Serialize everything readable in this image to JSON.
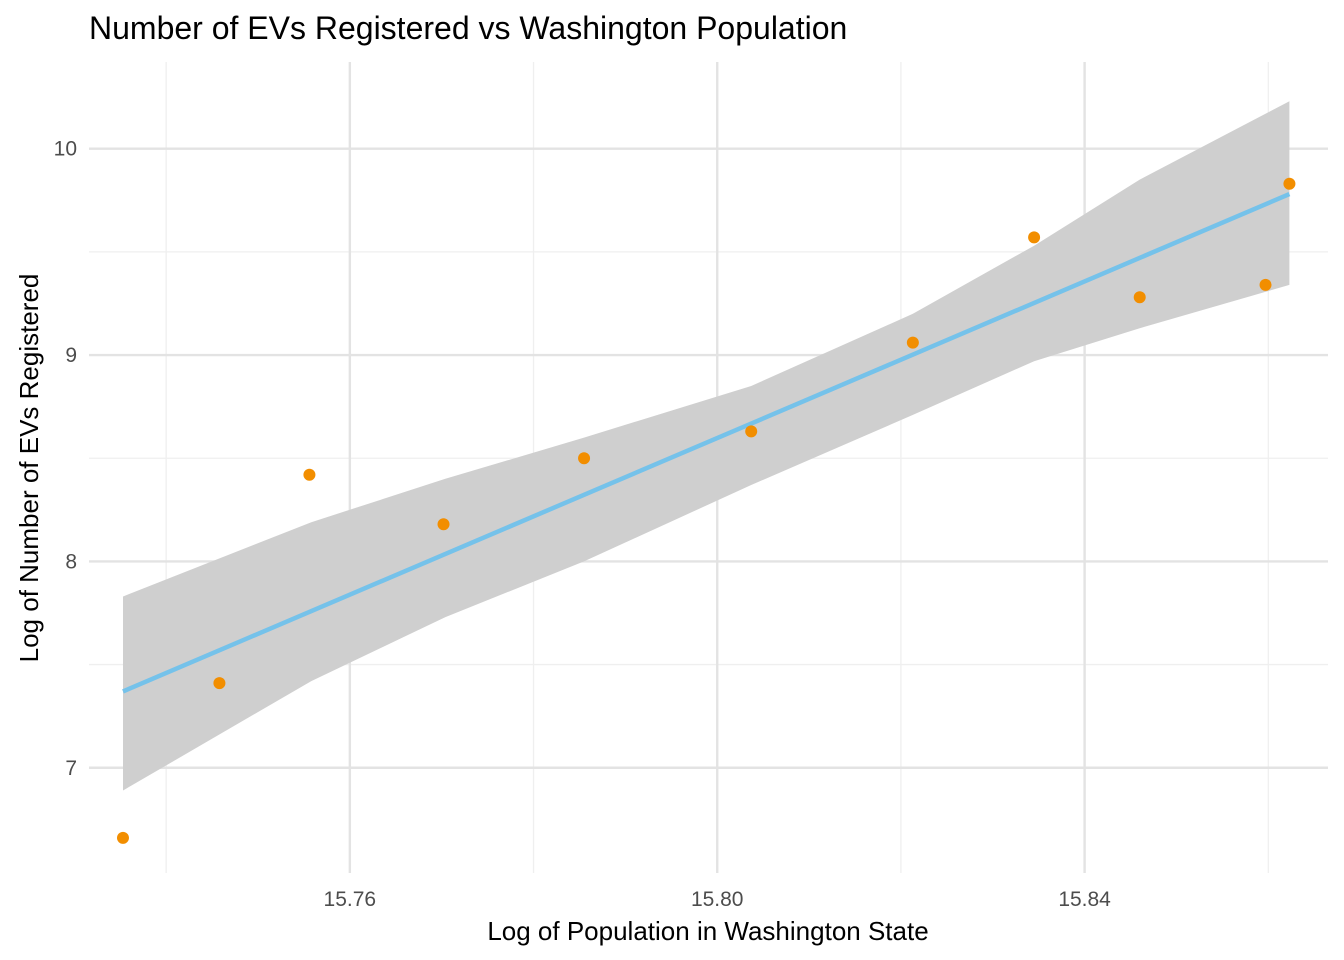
{
  "chart_data": {
    "type": "scatter",
    "title": "Number of EVs Registered vs Washington Population",
    "xlabel": "Log of Population in Washington State",
    "ylabel": "Log of Number of EVs Registered",
    "xlim": [
      15.7316,
      15.8665
    ],
    "ylim": [
      6.49,
      10.42
    ],
    "x_ticks": [
      15.76,
      15.8,
      15.84
    ],
    "x_tick_labels": [
      "15.76",
      "15.80",
      "15.84"
    ],
    "x_minor_ticks": [
      15.74,
      15.78,
      15.82,
      15.86
    ],
    "y_ticks": [
      7,
      8,
      9,
      10
    ],
    "y_tick_labels": [
      "7",
      "8",
      "9",
      "10"
    ],
    "y_minor_ticks": [
      7.5,
      8.5,
      9.5
    ],
    "grid": true,
    "point_color": "#f28e00",
    "points": [
      {
        "x": 15.7353,
        "y": 6.66
      },
      {
        "x": 15.7458,
        "y": 7.41
      },
      {
        "x": 15.7556,
        "y": 8.42
      },
      {
        "x": 15.7702,
        "y": 8.18
      },
      {
        "x": 15.7855,
        "y": 8.5
      },
      {
        "x": 15.8037,
        "y": 8.63
      },
      {
        "x": 15.8213,
        "y": 9.06
      },
      {
        "x": 15.8345,
        "y": 9.57
      },
      {
        "x": 15.846,
        "y": 9.28
      },
      {
        "x": 15.8597,
        "y": 9.34
      },
      {
        "x": 15.8623,
        "y": 9.83
      }
    ],
    "fit_line": {
      "color": "#75c2ea",
      "x": [
        15.7353,
        15.8623
      ],
      "y": [
        7.37,
        9.78
      ]
    },
    "confidence_band": {
      "color": "#cfcfcf",
      "x": [
        15.7353,
        15.7558,
        15.7704,
        15.7855,
        15.8037,
        15.8213,
        15.8345,
        15.846,
        15.8623
      ],
      "upper": [
        7.83,
        8.19,
        8.4,
        8.6,
        8.85,
        9.2,
        9.53,
        9.85,
        10.23
      ],
      "lower": [
        6.89,
        7.42,
        7.73,
        8.0,
        8.37,
        8.71,
        8.97,
        9.13,
        9.34
      ]
    }
  }
}
